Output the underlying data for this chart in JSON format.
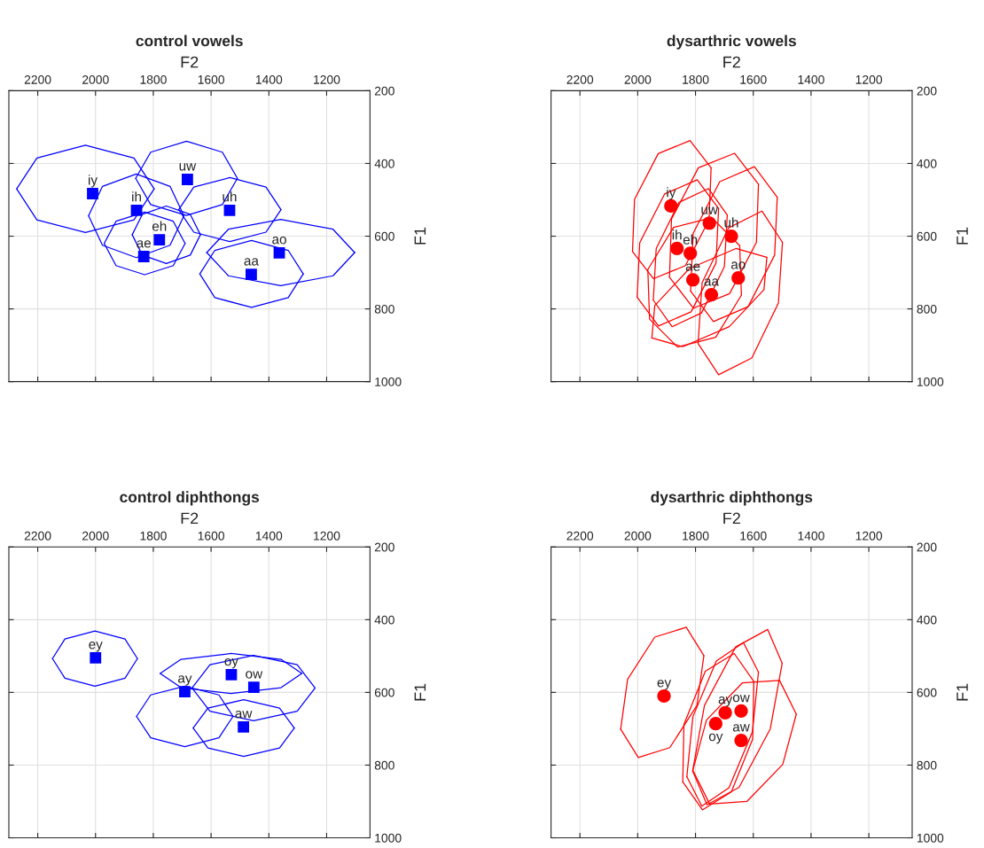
{
  "chart_data": [
    {
      "type": "scatter",
      "title": "control vowels",
      "xlabel": "F2",
      "ylabel": "F1",
      "xlim": [
        2300,
        1050
      ],
      "ylim": [
        1000,
        200
      ],
      "xticks": [
        2200,
        2000,
        1800,
        1600,
        1400,
        1200
      ],
      "yticks": [
        200,
        400,
        600,
        800,
        1000
      ],
      "grid": true,
      "series": [
        {
          "type": "scatter",
          "color": "#0000ff",
          "marker": "square",
          "x": [
            2010,
            1858,
            1682,
            1536,
            1779,
            1833,
            1364,
            1461
          ],
          "values": [
            483,
            529,
            444,
            529,
            610,
            656,
            646,
            705
          ]
        },
        {
          "type": "line",
          "color": "#0000ff",
          "x": [
            2273,
            2203,
            2035,
            1867,
            1797
          ],
          "values": [
            470,
            555,
            590,
            555,
            470
          ]
        },
        {
          "type": "line",
          "color": "#0000ff",
          "x": [
            1797,
            1867,
            2035,
            2203,
            2273
          ],
          "values": [
            470,
            385,
            350,
            385,
            470
          ]
        },
        {
          "type": "line",
          "color": "#0000ff",
          "x": [
            2024,
            1976,
            1859,
            1742,
            1694
          ],
          "values": [
            544,
            625,
            659,
            625,
            544
          ]
        },
        {
          "type": "line",
          "color": "#0000ff",
          "x": [
            1694,
            1742,
            1859,
            1976,
            2024
          ],
          "values": [
            544,
            463,
            429,
            463,
            544
          ]
        },
        {
          "type": "line",
          "color": "#0000ff",
          "x": [
            1861,
            1809,
            1685,
            1561,
            1509
          ],
          "values": [
            441,
            513,
            543,
            513,
            441
          ]
        },
        {
          "type": "line",
          "color": "#0000ff",
          "x": [
            1509,
            1561,
            1685,
            1809,
            1861
          ],
          "values": [
            441,
            369,
            339,
            369,
            441
          ]
        },
        {
          "type": "line",
          "color": "#0000ff",
          "x": [
            1712,
            1660,
            1535,
            1410,
            1358
          ],
          "values": [
            527,
            589,
            615,
            589,
            527
          ]
        },
        {
          "type": "line",
          "color": "#0000ff",
          "x": [
            1358,
            1410,
            1535,
            1660,
            1712
          ],
          "values": [
            527,
            465,
            439,
            465,
            527
          ]
        },
        {
          "type": "line",
          "color": "#0000ff",
          "x": [
            1873,
            1838,
            1755,
            1672,
            1637
          ],
          "values": [
            596,
            652,
            675,
            652,
            596
          ]
        },
        {
          "type": "line",
          "color": "#0000ff",
          "x": [
            1637,
            1672,
            1755,
            1838,
            1873
          ],
          "values": [
            596,
            540,
            517,
            540,
            596
          ]
        },
        {
          "type": "line",
          "color": "#0000ff",
          "x": [
            1970,
            1929,
            1830,
            1731,
            1690
          ],
          "values": [
            620,
            681,
            706,
            681,
            620
          ]
        },
        {
          "type": "line",
          "color": "#0000ff",
          "x": [
            1690,
            1731,
            1830,
            1929,
            1970
          ],
          "values": [
            620,
            559,
            534,
            559,
            620
          ]
        },
        {
          "type": "line",
          "color": "#0000ff",
          "x": [
            1615,
            1540,
            1359,
            1178,
            1103
          ],
          "values": [
            645,
            709,
            736,
            709,
            645
          ]
        },
        {
          "type": "line",
          "color": "#0000ff",
          "x": [
            1103,
            1178,
            1359,
            1540,
            1615
          ],
          "values": [
            645,
            581,
            554,
            581,
            645
          ]
        },
        {
          "type": "line",
          "color": "#0000ff",
          "x": [
            1639,
            1587,
            1460,
            1333,
            1281
          ],
          "values": [
            704,
            769,
            796,
            769,
            704
          ]
        },
        {
          "type": "line",
          "color": "#0000ff",
          "x": [
            1281,
            1333,
            1460,
            1587,
            1639
          ],
          "values": [
            704,
            639,
            612,
            639,
            704
          ]
        }
      ],
      "annotations": [
        {
          "text": "iy",
          "x": 2010,
          "y": 483
        },
        {
          "text": "ih",
          "x": 1858,
          "y": 529
        },
        {
          "text": "uw",
          "x": 1682,
          "y": 444
        },
        {
          "text": "uh",
          "x": 1536,
          "y": 529
        },
        {
          "text": "eh",
          "x": 1779,
          "y": 610
        },
        {
          "text": "ae",
          "x": 1833,
          "y": 656
        },
        {
          "text": "ao",
          "x": 1364,
          "y": 646
        },
        {
          "text": "aa",
          "x": 1461,
          "y": 705
        }
      ]
    },
    {
      "type": "scatter",
      "title": "dysarthric vowels",
      "xlabel": "F2",
      "ylabel": "F1",
      "xlim": [
        2300,
        1050
      ],
      "ylim": [
        1000,
        200
      ],
      "xticks": [
        2200,
        2000,
        1800,
        1600,
        1400,
        1200
      ],
      "yticks": [
        200,
        400,
        600,
        800,
        1000
      ],
      "grid": true,
      "series": [
        {
          "type": "line",
          "color": "#ff0000",
          "x": [
            1746,
            1753,
            1835,
            1945,
            2018
          ],
          "values": [
            412,
            555,
            681,
            717,
            642
          ]
        },
        {
          "type": "line",
          "color": "#ff0000",
          "x": [
            2018,
            2011,
            1929,
            1819,
            1746
          ],
          "values": [
            642,
            499,
            373,
            337,
            412
          ]
        },
        {
          "type": "line",
          "color": "#ff0000",
          "x": [
            1720,
            1729,
            1815,
            1928,
            2002
          ],
          "values": [
            524,
            674,
            808,
            847,
            768
          ]
        },
        {
          "type": "line",
          "color": "#ff0000",
          "x": [
            2002,
            1993,
            1907,
            1794,
            1720
          ],
          "values": [
            768,
            618,
            484,
            445,
            524
          ]
        },
        {
          "type": "line",
          "color": "#ff0000",
          "x": [
            1690,
            1700,
            1779,
            1881,
            1946
          ],
          "values": [
            542,
            684,
            811,
            849,
            776
          ]
        },
        {
          "type": "line",
          "color": "#ff0000",
          "x": [
            1946,
            1936,
            1857,
            1755,
            1690
          ],
          "values": [
            776,
            634,
            507,
            469,
            542
          ]
        },
        {
          "type": "line",
          "color": "#ff0000",
          "x": [
            1582,
            1589,
            1682,
            1807,
            1890
          ],
          "values": [
            457,
            617,
            758,
            798,
            713
          ]
        },
        {
          "type": "line",
          "color": "#ff0000",
          "x": [
            1890,
            1883,
            1790,
            1665,
            1582
          ],
          "values": [
            713,
            553,
            412,
            372,
            457
          ]
        },
        {
          "type": "line",
          "color": "#ff0000",
          "x": [
            1517,
            1526,
            1618,
            1738,
            1817
          ],
          "values": [
            493,
            652,
            794,
            835,
            751
          ]
        },
        {
          "type": "line",
          "color": "#ff0000",
          "x": [
            1817,
            1808,
            1716,
            1596,
            1517
          ],
          "values": [
            751,
            592,
            450,
            409,
            493
          ]
        },
        {
          "type": "line",
          "color": "#ff0000",
          "x": [
            1641,
            1730,
            1862,
            1959,
            1965
          ],
          "values": [
            762,
            878,
            905,
            828,
            692
          ]
        },
        {
          "type": "line",
          "color": "#ff0000",
          "x": [
            1965,
            1876,
            1744,
            1647,
            1641
          ],
          "values": [
            692,
            576,
            549,
            626,
            762
          ]
        },
        {
          "type": "line",
          "color": "#ff0000",
          "x": [
            1499,
            1513,
            1605,
            1720,
            1791
          ],
          "values": [
            617,
            784,
            935,
            981,
            895
          ]
        },
        {
          "type": "line",
          "color": "#ff0000",
          "x": [
            1791,
            1777,
            1685,
            1570,
            1499
          ],
          "values": [
            895,
            728,
            577,
            531,
            617
          ]
        },
        {
          "type": "line",
          "color": "#ff0000",
          "x": [
            1553,
            1563,
            1683,
            1844,
            1951
          ],
          "values": [
            658,
            747,
            849,
            904,
            880
          ]
        },
        {
          "type": "line",
          "color": "#ff0000",
          "x": [
            1951,
            1941,
            1821,
            1660,
            1553
          ],
          "values": [
            880,
            791,
            689,
            634,
            658
          ]
        },
        {
          "type": "scatter",
          "color": "#ff0000",
          "marker": "circle",
          "x": [
            1885,
            1752,
            1676,
            1864,
            1818,
            1809,
            1652,
            1745
          ],
          "values": [
            517,
            564,
            600,
            634,
            647,
            720,
            715,
            761
          ]
        }
      ],
      "annotations": [
        {
          "text": "iy",
          "x": 1885,
          "y": 517
        },
        {
          "text": "uw",
          "x": 1752,
          "y": 564
        },
        {
          "text": "uh",
          "x": 1676,
          "y": 600
        },
        {
          "text": "ih",
          "x": 1864,
          "y": 634
        },
        {
          "text": "eh",
          "x": 1818,
          "y": 647
        },
        {
          "text": "ae",
          "x": 1809,
          "y": 720
        },
        {
          "text": "ao",
          "x": 1652,
          "y": 715
        },
        {
          "text": "aa",
          "x": 1745,
          "y": 761
        }
      ]
    },
    {
      "type": "scatter",
      "title": "control diphthongs",
      "xlabel": "F2",
      "ylabel": "F1",
      "xlim": [
        2300,
        1050
      ],
      "ylim": [
        1000,
        200
      ],
      "xticks": [
        2200,
        2000,
        1800,
        1600,
        1400,
        1200
      ],
      "yticks": [
        200,
        400,
        600,
        800,
        1000
      ],
      "grid": true,
      "series": [
        {
          "type": "scatter",
          "color": "#0000ff",
          "marker": "square",
          "x": [
            2000,
            1452,
            1530,
            1691,
            1488
          ],
          "values": [
            505,
            586,
            551,
            598,
            695
          ]
        },
        {
          "type": "line",
          "color": "#0000ff",
          "x": [
            2149,
            2106,
            2002,
            1898,
            1855
          ],
          "values": [
            507,
            561,
            583,
            561,
            507
          ]
        },
        {
          "type": "line",
          "color": "#0000ff",
          "x": [
            1855,
            1898,
            2002,
            2106,
            2149
          ],
          "values": [
            507,
            453,
            431,
            453,
            507
          ]
        },
        {
          "type": "line",
          "color": "#0000ff",
          "x": [
            1776,
            1704,
            1531,
            1358,
            1286
          ],
          "values": [
            548,
            587,
            603,
            587,
            548
          ]
        },
        {
          "type": "line",
          "color": "#0000ff",
          "x": [
            1286,
            1358,
            1531,
            1704,
            1776
          ],
          "values": [
            548,
            509,
            493,
            509,
            548
          ]
        },
        {
          "type": "line",
          "color": "#0000ff",
          "x": [
            1666,
            1604,
            1453,
            1302,
            1240
          ],
          "values": [
            588,
            652,
            678,
            652,
            588
          ]
        },
        {
          "type": "line",
          "color": "#0000ff",
          "x": [
            1240,
            1302,
            1453,
            1604,
            1666
          ],
          "values": [
            588,
            524,
            498,
            524,
            588
          ]
        },
        {
          "type": "line",
          "color": "#0000ff",
          "x": [
            1858,
            1809,
            1691,
            1573,
            1524
          ],
          "values": [
            666,
            725,
            749,
            725,
            666
          ]
        },
        {
          "type": "line",
          "color": "#0000ff",
          "x": [
            1524,
            1573,
            1691,
            1809,
            1858
          ],
          "values": [
            666,
            607,
            583,
            607,
            666
          ]
        },
        {
          "type": "line",
          "color": "#0000ff",
          "x": [
            1662,
            1611,
            1487,
            1363,
            1312
          ],
          "values": [
            698,
            753,
            776,
            753,
            698
          ]
        },
        {
          "type": "line",
          "color": "#0000ff",
          "x": [
            1312,
            1363,
            1487,
            1611,
            1662
          ],
          "values": [
            698,
            643,
            620,
            643,
            698
          ]
        }
      ],
      "annotations": [
        {
          "text": "ey",
          "x": 2000,
          "y": 505
        },
        {
          "text": "ow",
          "x": 1452,
          "y": 586
        },
        {
          "text": "oy",
          "x": 1530,
          "y": 551
        },
        {
          "text": "ay",
          "x": 1691,
          "y": 598
        },
        {
          "text": "aw",
          "x": 1488,
          "y": 695
        }
      ]
    },
    {
      "type": "scatter",
      "title": "dysarthric diphthongs",
      "xlabel": "F2",
      "ylabel": "F1",
      "xlim": [
        2300,
        1050
      ],
      "ylim": [
        1000,
        200
      ],
      "xticks": [
        2200,
        2000,
        1800,
        1600,
        1400,
        1200
      ],
      "yticks": [
        200,
        400,
        600,
        800,
        1000
      ],
      "grid": true,
      "series": [
        {
          "type": "line",
          "color": "#ff0000",
          "x": [
            1771,
            1795,
            1889,
            1998,
            2059
          ],
          "values": [
            499,
            636,
            752,
            779,
            701
          ]
        },
        {
          "type": "line",
          "color": "#ff0000",
          "x": [
            2059,
            2035,
            1941,
            1832,
            1771
          ],
          "values": [
            701,
            564,
            448,
            421,
            499
          ]
        },
        {
          "type": "line",
          "color": "#ff0000",
          "x": [
            1500,
            1541,
            1649,
            1760,
            1810
          ],
          "values": [
            520,
            700,
            861,
            909,
            816
          ]
        },
        {
          "type": "line",
          "color": "#ff0000",
          "x": [
            1810,
            1769,
            1661,
            1550,
            1500
          ],
          "values": [
            816,
            636,
            475,
            427,
            520
          ]
        },
        {
          "type": "line",
          "color": "#ff0000",
          "x": [
            1582,
            1603,
            1684,
            1778,
            1830
          ],
          "values": [
            544,
            709,
            862,
            913,
            832
          ]
        },
        {
          "type": "line",
          "color": "#ff0000",
          "x": [
            1830,
            1809,
            1728,
            1634,
            1582
          ],
          "values": [
            832,
            667,
            514,
            463,
            544
          ]
        },
        {
          "type": "line",
          "color": "#ff0000",
          "x": [
            1598,
            1602,
            1676,
            1776,
            1844
          ],
          "values": [
            570,
            728,
            874,
            923,
            846
          ]
        },
        {
          "type": "line",
          "color": "#ff0000",
          "x": [
            1844,
            1840,
            1766,
            1666,
            1598
          ],
          "values": [
            846,
            688,
            542,
            493,
            570
          ]
        },
        {
          "type": "line",
          "color": "#ff0000",
          "x": [
            1451,
            1498,
            1622,
            1751,
            1809
          ],
          "values": [
            660,
            798,
            900,
            907,
            814
          ]
        },
        {
          "type": "line",
          "color": "#ff0000",
          "x": [
            1809,
            1762,
            1638,
            1509,
            1451
          ],
          "values": [
            814,
            676,
            574,
            567,
            660
          ]
        },
        {
          "type": "scatter",
          "color": "#ff0000",
          "marker": "circle",
          "x": [
            1909,
            1697,
            1642,
            1730,
            1642
          ],
          "values": [
            610,
            656,
            651,
            686,
            732
          ]
        }
      ],
      "annotations": [
        {
          "text": "ey",
          "x": 1909,
          "y": 610
        },
        {
          "text": "ay",
          "x": 1697,
          "y": 656
        },
        {
          "text": "ow",
          "x": 1642,
          "y": 651
        },
        {
          "text": "oy",
          "x": 1730,
          "y": 686
        },
        {
          "text": "aw",
          "x": 1642,
          "y": 732
        }
      ]
    }
  ]
}
